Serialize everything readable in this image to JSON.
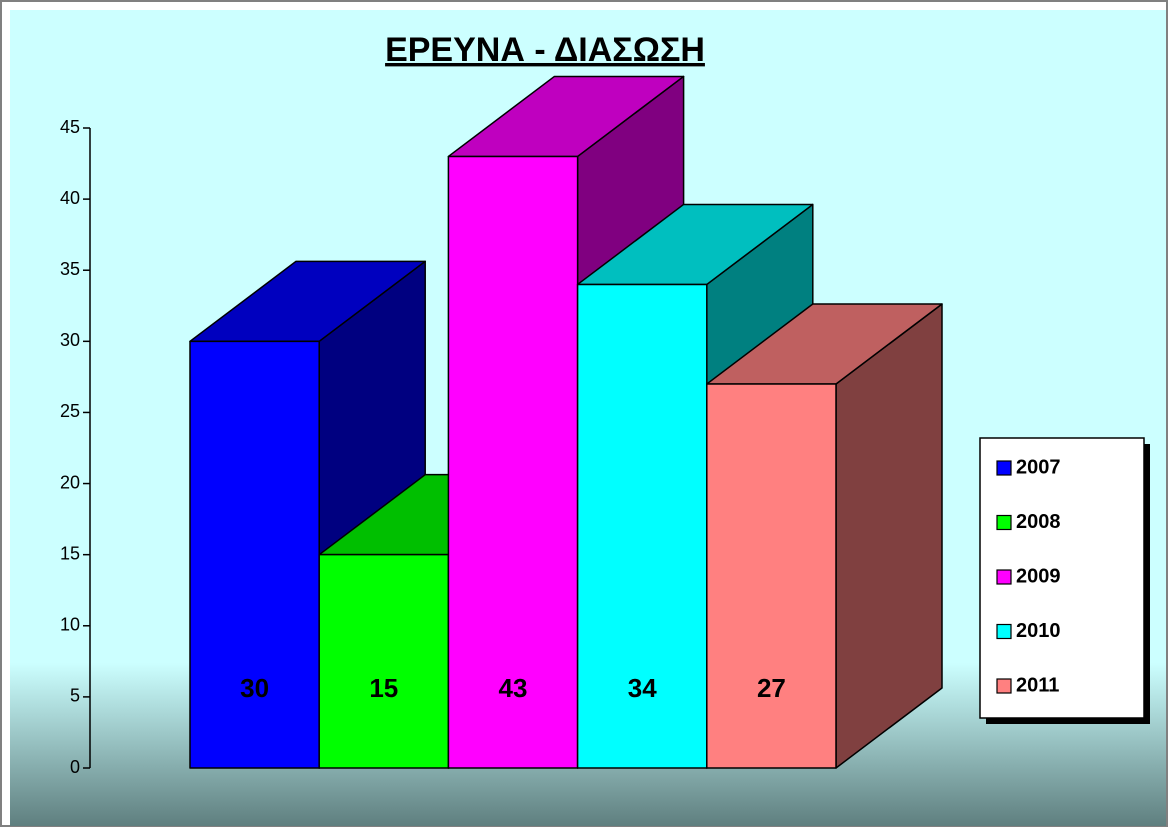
{
  "chart_data": {
    "type": "bar3d",
    "title": "ΕΡΕΥΝΑ - ΔΙΑΣΩΣΗ",
    "categories": [
      null
    ],
    "series": [
      {
        "name": "2007",
        "color": "#0000ff",
        "values": [
          30
        ]
      },
      {
        "name": "2008",
        "color": "#00ff00",
        "values": [
          15
        ]
      },
      {
        "name": "2009",
        "color": "#ff00ff",
        "values": [
          43
        ]
      },
      {
        "name": "2010",
        "color": "#00ffff",
        "values": [
          34
        ]
      },
      {
        "name": "2011",
        "color": "#ff8080",
        "values": [
          27
        ]
      }
    ],
    "ylim": [
      0,
      45
    ],
    "yticks": [
      0,
      5,
      10,
      15,
      20,
      25,
      30,
      35,
      40,
      45
    ],
    "legend": "right"
  }
}
